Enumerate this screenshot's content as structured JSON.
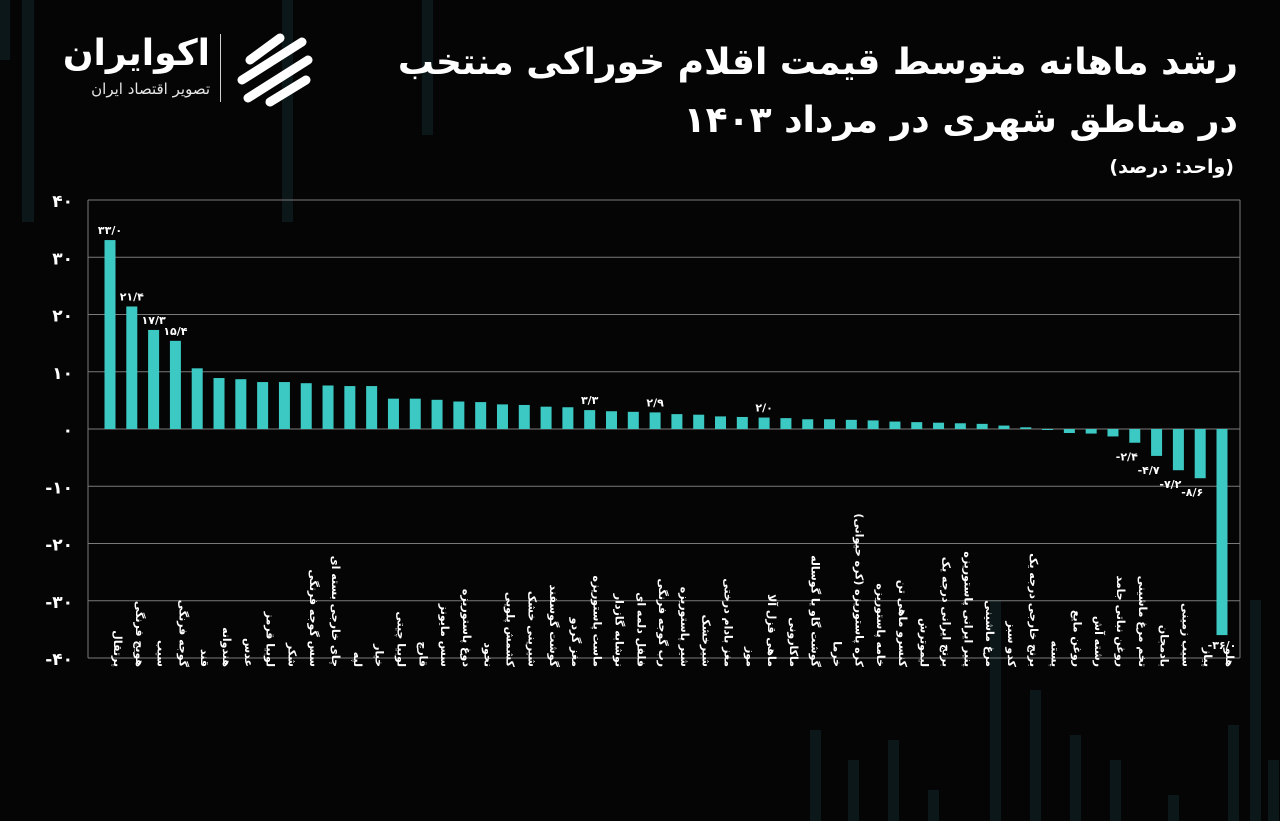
{
  "header": {
    "title_line1": "رشد ماهانه متوسط قیمت اقلام خوراکی منتخب",
    "title_line2": "در مناطق شهری در مرداد ۱۴۰۳",
    "unit": "(واحد: درصد)"
  },
  "brand": {
    "name": "اکوایران",
    "tagline": "تصویر اقتصاد ایران"
  },
  "colors": {
    "bar": "#3cc9c3",
    "grid": "#7a7a7a",
    "background": "#050505",
    "text": "#ffffff"
  },
  "chart_data": {
    "type": "bar",
    "ylim": [
      -40,
      40
    ],
    "yticks": [
      {
        "value": 40,
        "label": "۴۰"
      },
      {
        "value": 30,
        "label": "۳۰"
      },
      {
        "value": 20,
        "label": "۲۰"
      },
      {
        "value": 10,
        "label": "۱۰"
      },
      {
        "value": 0,
        "label": "۰"
      },
      {
        "value": -10,
        "label": "-۱۰"
      },
      {
        "value": -20,
        "label": "-۲۰"
      },
      {
        "value": -30,
        "label": "-۳۰"
      },
      {
        "value": -40,
        "label": "-۴۰"
      }
    ],
    "grid": true,
    "categories": [
      "پرتقال",
      "هویج فرنگی",
      "سیب",
      "گوجه فرنگی",
      "قند",
      "هندوانه",
      "عدس",
      "لوبیا قرمز",
      "شکر",
      "سس گوجه فرنگی",
      "چای خارجی بسته ای",
      "لپه",
      "خیار",
      "لوبیا چیتی",
      "قارچ",
      "سس مایونز",
      "دوغ پاستوریزه",
      "نخود",
      "کشمش پلویی",
      "شیرینی خشک",
      "گوشت گوسفند",
      "مغز گردو",
      "ماست پاستوریزه",
      "نوشابه گازدار",
      "فلفل دلمه ای",
      "رب گوجه فرنگی",
      "شیر پاستوریزه",
      "شیرخشک",
      "مغز بادام درختی",
      "موز",
      "ماهی قزل آلا",
      "ماکارونی",
      "گوشت گاو یا گوساله",
      "خرما",
      "کره پاستوریزه (کره حیوانی)",
      "خامه پاستوریزه",
      "کنسرو ماهی تن",
      "لیموترش",
      "برنج ایرانی درجه یک",
      "پنیر ایرانی پاستوریزه",
      "مرغ ماشینی",
      "کدو سبز",
      "برنج خارجی درجه یک",
      "پسته",
      "روغن مایع",
      "رشته آش",
      "روغن نباتی جامد",
      "تخم مرغ ماشینی",
      "بادمجان",
      "سیب زمینی",
      "پیاز",
      "هلو"
    ],
    "values": [
      33.0,
      21.4,
      17.3,
      15.4,
      10.6,
      8.9,
      8.7,
      8.2,
      8.2,
      8.0,
      7.6,
      7.5,
      7.5,
      5.3,
      5.3,
      5.1,
      4.8,
      4.7,
      4.3,
      4.2,
      3.9,
      3.8,
      3.3,
      3.1,
      3.0,
      2.9,
      2.6,
      2.5,
      2.2,
      2.1,
      2.0,
      1.9,
      1.7,
      1.7,
      1.6,
      1.5,
      1.3,
      1.2,
      1.1,
      1.0,
      0.9,
      0.6,
      0.3,
      -0.1,
      -0.7,
      -0.8,
      -1.3,
      -2.4,
      -4.7,
      -7.2,
      -8.6,
      -36.0
    ],
    "data_labels": [
      {
        "index": 0,
        "label": "۳۳/۰"
      },
      {
        "index": 1,
        "label": "۲۱/۴"
      },
      {
        "index": 2,
        "label": "۱۷/۳"
      },
      {
        "index": 3,
        "label": "۱۵/۴"
      },
      {
        "index": 22,
        "label": "۳/۳"
      },
      {
        "index": 25,
        "label": "۲/۹"
      },
      {
        "index": 30,
        "label": "۲/۰"
      },
      {
        "index": 47,
        "label": "-۲/۴"
      },
      {
        "index": 48,
        "label": "-۴/۷"
      },
      {
        "index": 49,
        "label": "-۷/۲"
      },
      {
        "index": 50,
        "label": "-۸/۶"
      },
      {
        "index": 51,
        "label": "-۳۶/۰"
      }
    ]
  }
}
